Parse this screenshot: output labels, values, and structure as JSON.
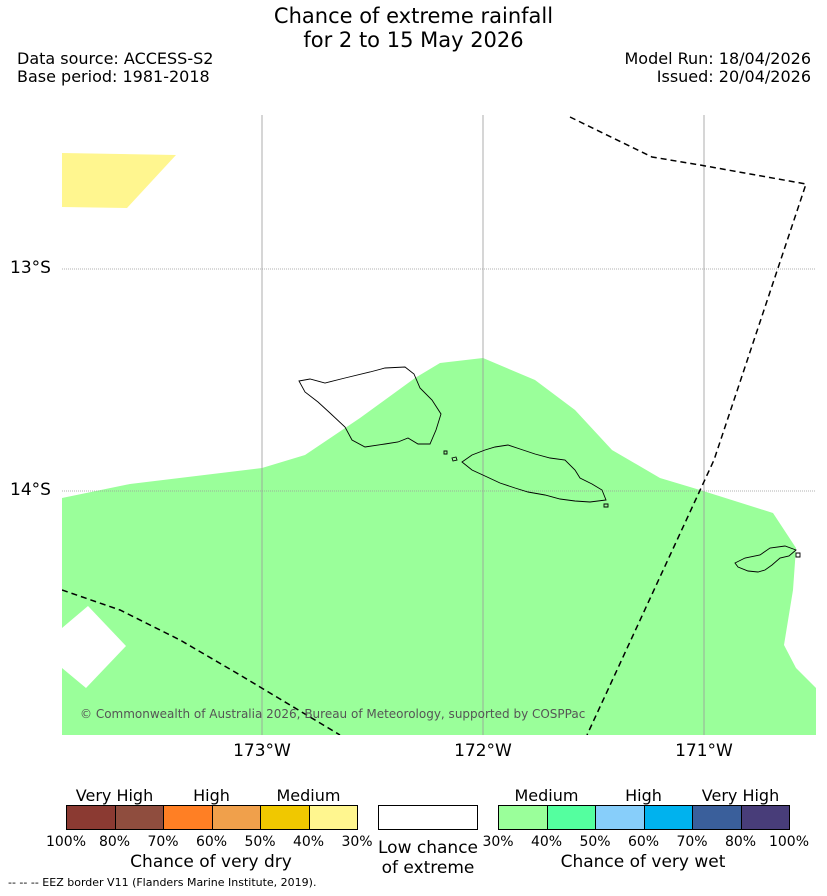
{
  "title_line1": "Chance of extreme rainfall",
  "title_line2": "for 2 to 15 May 2026",
  "data_source": "Data source: ACCESS-S2",
  "base_period": "Base period: 1981-2018",
  "model_run": "Model Run: 18/04/2026",
  "issued": "Issued: 20/04/2026",
  "lat_labels": [
    "13°S",
    "14°S"
  ],
  "lon_labels": [
    "173°W",
    "172°W",
    "171°W"
  ],
  "copyright": "© Commonwealth of Australia 2026, Bureau of Meteorology, supported by COSPPac",
  "footer": "--  --  -- EEZ border V11 (Flanders Marine Institute, 2019).",
  "dry_legend": {
    "categories": [
      "Very High",
      "High",
      "Medium"
    ],
    "ticks": [
      "100%",
      "80%",
      "70%",
      "60%",
      "50%",
      "40%",
      "30%"
    ],
    "colors": [
      "#8b3a32",
      "#8f4d3e",
      "#ff7f24",
      "#f0a04b",
      "#f0c800",
      "#fff68f"
    ],
    "label": "Chance of very dry"
  },
  "low_legend": {
    "label_line1": "Low chance",
    "label_line2": "of extreme",
    "color": "#ffffff"
  },
  "wet_legend": {
    "categories": [
      "Medium",
      "High",
      "Very High"
    ],
    "ticks": [
      "30%",
      "40%",
      "50%",
      "60%",
      "70%",
      "80%",
      "100%"
    ],
    "colors": [
      "#9aff9a",
      "#54ff9f",
      "#87cefa",
      "#00b2ee",
      "#3a5f9b",
      "#483d79"
    ],
    "label": "Chance of very wet"
  },
  "colors": {
    "wet_medium": "#9aff9a",
    "dry_medium_low": "#fff68f",
    "eez_border": "#000000",
    "gridline": "#999999"
  }
}
